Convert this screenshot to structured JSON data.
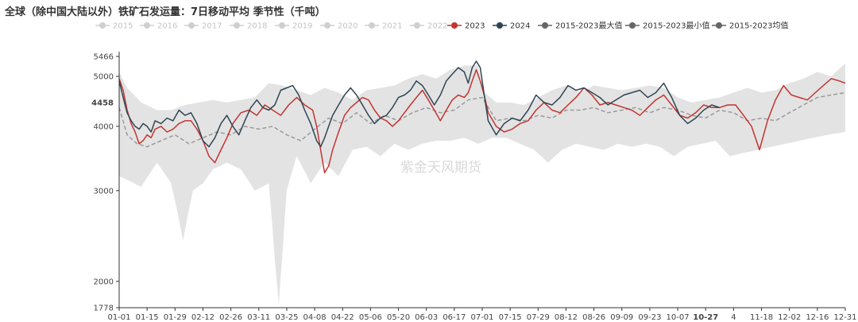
{
  "title": "全球（除中国大陆以外）铁矿石发运量：7日移动平均 季节性（千吨）",
  "watermark": "紫金天风期货",
  "colors": {
    "inactive": "#cfcfcf",
    "y2023": "#c23531",
    "y2024": "#2f4554",
    "max": "#666666",
    "min": "#666666",
    "avg": "#666666",
    "band": "#e3e3e3",
    "avgLine": "#9a9a9a"
  },
  "chart_data": {
    "type": "line",
    "ylim": [
      1778,
      5466
    ],
    "yticks": [
      1778,
      2000,
      3000,
      4000,
      5000,
      5466
    ],
    "cursor_value": 4458,
    "cursor_label": "10-27",
    "xticks": [
      "01-01",
      "01-15",
      "01-29",
      "02-12",
      "02-26",
      "03-11",
      "03-25",
      "04-08",
      "04-22",
      "05-06",
      "05-20",
      "06-03",
      "06-17",
      "07-01",
      "07-15",
      "07-29",
      "08-12",
      "08-26",
      "09-09",
      "09-23",
      "10-07",
      "10-27",
      "4",
      "11-18",
      "12-02",
      "12-16",
      "12-31"
    ],
    "legend": [
      {
        "name": "2015",
        "active": false
      },
      {
        "name": "2016",
        "active": false
      },
      {
        "name": "2017",
        "active": false
      },
      {
        "name": "2018",
        "active": false
      },
      {
        "name": "2019",
        "active": false
      },
      {
        "name": "2020",
        "active": false
      },
      {
        "name": "2021",
        "active": false
      },
      {
        "name": "2022",
        "active": false
      },
      {
        "name": "2023",
        "active": true
      },
      {
        "name": "2024",
        "active": true
      },
      {
        "name": "2015-2023最大值",
        "active": true
      },
      {
        "name": "2015-2023最小值",
        "active": true
      },
      {
        "name": "2015-2023均值",
        "active": true
      }
    ],
    "series": [
      {
        "name": "2015-2023最大值",
        "x": [
          1,
          5,
          12,
          20,
          27,
          34,
          41,
          48,
          55,
          62,
          69,
          76,
          83,
          90,
          97,
          104,
          111,
          118,
          125,
          132,
          139,
          146,
          153,
          160,
          167,
          174,
          181,
          183,
          190,
          197,
          204,
          211,
          218,
          225,
          232,
          239,
          246,
          253,
          260,
          267,
          274,
          281,
          288,
          295,
          302,
          309,
          316,
          323,
          330,
          337,
          344,
          351,
          358,
          365
        ],
        "values": [
          5100,
          4750,
          4450,
          4300,
          4300,
          4400,
          4450,
          4500,
          4450,
          4500,
          4550,
          4850,
          4800,
          4700,
          4600,
          4750,
          4650,
          4500,
          4700,
          4750,
          4800,
          4950,
          5050,
          4950,
          5150,
          5250,
          5250,
          4700,
          4450,
          4450,
          4400,
          4550,
          4700,
          4800,
          4650,
          4800,
          4750,
          4700,
          4750,
          4800,
          4750,
          4550,
          4450,
          4500,
          4550,
          4650,
          4750,
          4650,
          4700,
          4850,
          4950,
          5100,
          5000,
          5300
        ]
      },
      {
        "name": "2015-2023最小值",
        "x": [
          1,
          5,
          12,
          20,
          27,
          33,
          38,
          43,
          48,
          55,
          62,
          69,
          76,
          79,
          81,
          83,
          85,
          90,
          97,
          104,
          111,
          118,
          125,
          132,
          139,
          146,
          153,
          160,
          167,
          174,
          181,
          188,
          195,
          202,
          209,
          216,
          223,
          230,
          237,
          244,
          251,
          258,
          265,
          272,
          279,
          286,
          293,
          300,
          307,
          314,
          321,
          328,
          335,
          342,
          349,
          356,
          365
        ],
        "values": [
          3200,
          3150,
          3050,
          3400,
          3100,
          2400,
          3000,
          3100,
          3300,
          3400,
          3300,
          3000,
          3100,
          2200,
          1800,
          2300,
          3000,
          3500,
          3100,
          3400,
          3200,
          3600,
          3650,
          3500,
          3700,
          3600,
          3700,
          3750,
          3750,
          3800,
          3700,
          3800,
          3800,
          3700,
          3600,
          3400,
          3600,
          3700,
          3650,
          3600,
          3700,
          3650,
          3700,
          3650,
          3500,
          3650,
          3700,
          3750,
          3500,
          3550,
          3600,
          3650,
          3700,
          3750,
          3800,
          3850,
          3900
        ]
      },
      {
        "name": "2015-2023均值",
        "x": [
          1,
          5,
          10,
          15,
          22,
          29,
          36,
          43,
          50,
          57,
          64,
          71,
          78,
          85,
          92,
          99,
          106,
          113,
          120,
          127,
          134,
          141,
          148,
          155,
          162,
          169,
          176,
          183,
          190,
          197,
          204,
          211,
          218,
          225,
          232,
          239,
          246,
          253,
          260,
          267,
          274,
          281,
          288,
          295,
          302,
          309,
          316,
          323,
          330,
          337,
          344,
          351,
          358,
          365
        ],
        "values": [
          4350,
          3850,
          3700,
          3650,
          3750,
          3850,
          3700,
          3800,
          3900,
          3850,
          4000,
          3950,
          4000,
          3850,
          3750,
          3950,
          4150,
          4050,
          4250,
          4050,
          4200,
          4100,
          4250,
          4350,
          4250,
          4300,
          4500,
          4550,
          4100,
          4150,
          4100,
          4200,
          4150,
          4300,
          4300,
          4350,
          4250,
          4300,
          4350,
          4250,
          4350,
          4300,
          4200,
          4150,
          4300,
          4250,
          4100,
          4150,
          4100,
          4250,
          4400,
          4550,
          4600,
          4650
        ]
      },
      {
        "name": "2023",
        "x": [
          1,
          3,
          5,
          7,
          9,
          11,
          13,
          15,
          17,
          19,
          22,
          25,
          28,
          31,
          34,
          37,
          40,
          43,
          46,
          49,
          52,
          55,
          58,
          62,
          66,
          70,
          74,
          78,
          82,
          86,
          90,
          94,
          98,
          100,
          102,
          104,
          106,
          108,
          111,
          114,
          117,
          120,
          123,
          126,
          129,
          132,
          135,
          138,
          141,
          144,
          147,
          150,
          153,
          156,
          159,
          162,
          165,
          168,
          171,
          174,
          176,
          178,
          180,
          182,
          184,
          186,
          190,
          194,
          198,
          202,
          206,
          210,
          214,
          218,
          222,
          226,
          230,
          234,
          238,
          242,
          246,
          250,
          254,
          258,
          262,
          266,
          270,
          274,
          278,
          282,
          286,
          290,
          294,
          298,
          302,
          306,
          310,
          314,
          318,
          322,
          326,
          330,
          334,
          338,
          342,
          346,
          350,
          354,
          358,
          362,
          365
        ],
        "values": [
          4950,
          4700,
          4300,
          4050,
          3900,
          3700,
          3750,
          3850,
          3800,
          3950,
          4000,
          3900,
          3950,
          4050,
          4100,
          4100,
          3950,
          3750,
          3500,
          3400,
          3600,
          3800,
          4050,
          4250,
          4300,
          4200,
          4400,
          4300,
          4200,
          4400,
          4550,
          4400,
          4300,
          4000,
          3600,
          3250,
          3350,
          3600,
          3900,
          4200,
          4350,
          4450,
          4550,
          4500,
          4300,
          4150,
          4100,
          4000,
          4100,
          4250,
          4400,
          4550,
          4700,
          4500,
          4300,
          4100,
          4300,
          4500,
          4600,
          4550,
          4650,
          4900,
          5150,
          4900,
          4600,
          4250,
          4000,
          3900,
          3950,
          4050,
          4100,
          4300,
          4450,
          4300,
          4250,
          4400,
          4550,
          4750,
          4600,
          4400,
          4450,
          4400,
          4350,
          4300,
          4200,
          4350,
          4500,
          4600,
          4400,
          4200,
          4150,
          4250,
          4400,
          4350,
          4350,
          4400,
          4400,
          4200,
          4000,
          3600,
          4100,
          4500,
          4800,
          4600,
          4550,
          4500,
          4650,
          4800,
          4950,
          4900,
          4850
        ]
      },
      {
        "name": "2024",
        "x": [
          1,
          3,
          5,
          7,
          9,
          11,
          13,
          15,
          17,
          19,
          22,
          25,
          28,
          31,
          34,
          37,
          40,
          43,
          46,
          49,
          52,
          55,
          58,
          61,
          64,
          67,
          70,
          73,
          76,
          79,
          82,
          85,
          88,
          91,
          94,
          97,
          100,
          102,
          104,
          106,
          108,
          111,
          114,
          117,
          120,
          123,
          126,
          129,
          132,
          135,
          138,
          141,
          144,
          147,
          150,
          153,
          156,
          159,
          162,
          165,
          168,
          171,
          174,
          176,
          178,
          180,
          182,
          184,
          186,
          190,
          194,
          198,
          202,
          206,
          210,
          214,
          218,
          222,
          226,
          230,
          234,
          238,
          242,
          246,
          250,
          254,
          258,
          262,
          266,
          270,
          274,
          278,
          282,
          286,
          290,
          294,
          298,
          302
        ],
        "values": [
          4900,
          4550,
          4250,
          4100,
          4000,
          3950,
          4050,
          4000,
          3900,
          4100,
          4050,
          4150,
          4100,
          4300,
          4200,
          4250,
          4050,
          3750,
          3650,
          3800,
          4050,
          4200,
          4000,
          3850,
          4100,
          4350,
          4500,
          4350,
          4300,
          4400,
          4700,
          4750,
          4800,
          4600,
          4300,
          4050,
          3750,
          3650,
          3800,
          4000,
          4200,
          4400,
          4600,
          4750,
          4600,
          4400,
          4200,
          4050,
          4150,
          4200,
          4350,
          4550,
          4600,
          4700,
          4900,
          4800,
          4600,
          4400,
          4600,
          4900,
          5050,
          5200,
          5100,
          4850,
          5200,
          5350,
          5200,
          4600,
          4100,
          3850,
          4050,
          4150,
          4100,
          4300,
          4600,
          4450,
          4400,
          4550,
          4800,
          4700,
          4750,
          4650,
          4550,
          4400,
          4500,
          4600,
          4650,
          4700,
          4550,
          4650,
          4850,
          4550,
          4200,
          4050,
          4150,
          4300,
          4400,
          4350
        ]
      }
    ]
  }
}
